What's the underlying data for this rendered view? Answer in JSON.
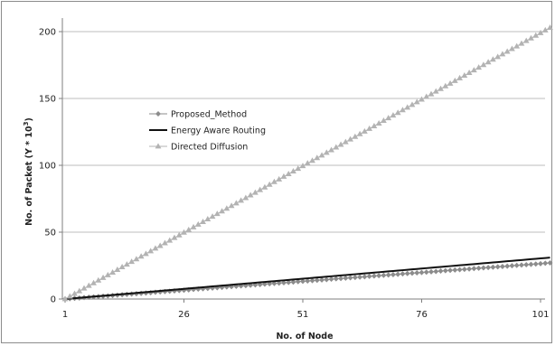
{
  "chart_data": {
    "type": "line",
    "title": "",
    "xlabel": "No. of Node",
    "ylabel": "No. of Packet (Y * 10",
    "ylabel_sup": "3",
    "ylabel_close": ")",
    "x_ticks": [
      "1",
      "26",
      "51",
      "76",
      "101"
    ],
    "y_ticks": [
      "0",
      "50",
      "100",
      "150",
      "200"
    ],
    "xlim": [
      1,
      101
    ],
    "ylim": [
      0,
      200
    ],
    "grid": "horizontal",
    "legend_position": "left-middle",
    "x_start": 1,
    "x_end": 103,
    "series": [
      {
        "name": "Proposed_Method",
        "start": 0,
        "end": 27,
        "color": "#8c8c8c",
        "marker": "diamond"
      },
      {
        "name": "Energy Aware Routing",
        "start": 0,
        "end": 31,
        "color": "#111111",
        "marker": "line"
      },
      {
        "name": "Directed Diffusion",
        "start": 0,
        "end": 203,
        "color": "#b3b3b3",
        "marker": "triangle"
      }
    ]
  }
}
